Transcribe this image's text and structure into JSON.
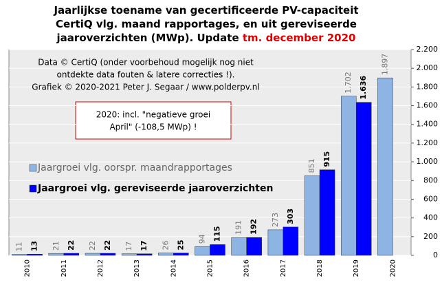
{
  "chart_data": {
    "type": "bar",
    "title_lines": [
      "Jaarlijkse  toename van gecertificeerde  PV-capaciteit",
      "CertiQ vlg. maand rapportages, en uit gereviseerde",
      "jaaroverzichten (MWp). Update "
    ],
    "title_highlight": "tm. december 2020",
    "notes": [
      "Data © CertiQ (onder voorbehoud mogelijk  nog niet",
      "ontdekte data fouten & latere correcties !).",
      "Grafiek  © 2020-2021 Peter J. Segaar / www.polderpv.nl"
    ],
    "annotation_lines": [
      "2020: incl. \"negatieve groei",
      "April\"  (-108,5 MWp) !"
    ],
    "categories": [
      "2010",
      "2011",
      "2012",
      "2013",
      "2014",
      "2015",
      "2016",
      "2017",
      "2018",
      "2019",
      "2020"
    ],
    "series": [
      {
        "name": "Jaargroei vlg. oorspr. maandrapportages",
        "color": "#8db4e2",
        "values": [
          11,
          21,
          22,
          17,
          26,
          94,
          191,
          273,
          851,
          1702,
          1897
        ],
        "value_labels": [
          "11",
          "21",
          "22",
          "17",
          "26",
          "94",
          "191",
          "273",
          "851",
          "1.702",
          "1.897"
        ]
      },
      {
        "name": "Jaargroei vlg. gereviseerde jaaroverzichten",
        "color": "#0000ff",
        "values": [
          13,
          22,
          22,
          17,
          25,
          115,
          192,
          303,
          915,
          1636,
          null
        ],
        "value_labels": [
          "13",
          "22",
          "22",
          "17",
          "25",
          "115",
          "192",
          "303",
          "915",
          "1.636",
          null
        ]
      }
    ],
    "ylim": [
      0,
      2200
    ],
    "yticks": [
      0,
      200,
      400,
      600,
      800,
      {
        "value": 1000,
        "label": "1.000"
      },
      {
        "value": 1200,
        "label": "1.200"
      },
      {
        "value": 1400,
        "label": "1.400"
      },
      {
        "value": 1600,
        "label": "1.600"
      },
      {
        "value": 1800,
        "label": "1.800"
      },
      {
        "value": 2000,
        "label": "2.000"
      },
      {
        "value": 2200,
        "label": "2.200"
      }
    ],
    "grid": true
  }
}
